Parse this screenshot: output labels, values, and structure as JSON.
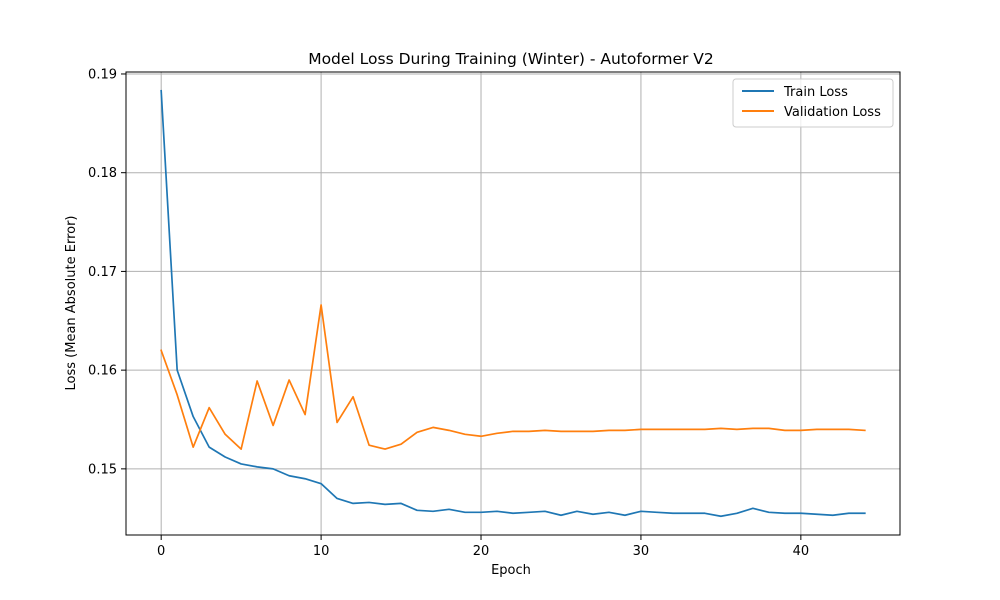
{
  "chart_data": {
    "type": "line",
    "title": "Model Loss During Training (Winter) - Autoformer V2",
    "xlabel": "Epoch",
    "ylabel": "Loss (Mean Absolute Error)",
    "xlim": [
      -2.2,
      46.2
    ],
    "ylim": [
      0.1433,
      0.1902
    ],
    "xticks": [
      0,
      10,
      20,
      30,
      40
    ],
    "yticks": [
      0.15,
      0.16,
      0.17,
      0.18,
      0.19
    ],
    "grid": true,
    "legend_position": "top-right",
    "x": [
      0,
      1,
      2,
      3,
      4,
      5,
      6,
      7,
      8,
      9,
      10,
      11,
      12,
      13,
      14,
      15,
      16,
      17,
      18,
      19,
      20,
      21,
      22,
      23,
      24,
      25,
      26,
      27,
      28,
      29,
      30,
      31,
      32,
      33,
      34,
      35,
      36,
      37,
      38,
      39,
      40,
      41,
      42,
      43,
      44
    ],
    "series": [
      {
        "name": "Train Loss",
        "color": "#1f77b4",
        "values": [
          0.1883,
          0.16,
          0.1553,
          0.1522,
          0.1512,
          0.1505,
          0.1502,
          0.15,
          0.1493,
          0.149,
          0.1485,
          0.147,
          0.1465,
          0.1466,
          0.1464,
          0.1465,
          0.1458,
          0.1457,
          0.1459,
          0.1456,
          0.1456,
          0.1457,
          0.1455,
          0.1456,
          0.1457,
          0.1453,
          0.1457,
          0.1454,
          0.1456,
          0.1453,
          0.1457,
          0.1456,
          0.1455,
          0.1455,
          0.1455,
          0.1452,
          0.1455,
          0.146,
          0.1456,
          0.1455,
          0.1455,
          0.1454,
          0.1453,
          0.1455,
          0.1455
        ]
      },
      {
        "name": "Validation Loss",
        "color": "#ff7f0e",
        "values": [
          0.162,
          0.1575,
          0.1522,
          0.1562,
          0.1535,
          0.152,
          0.1589,
          0.1544,
          0.159,
          0.1555,
          0.1666,
          0.1547,
          0.1573,
          0.1524,
          0.152,
          0.1525,
          0.1537,
          0.1542,
          0.1539,
          0.1535,
          0.1533,
          0.1536,
          0.1538,
          0.1538,
          0.1539,
          0.1538,
          0.1538,
          0.1538,
          0.1539,
          0.1539,
          0.154,
          0.154,
          0.154,
          0.154,
          0.154,
          0.1541,
          0.154,
          0.1541,
          0.1541,
          0.1539,
          0.1539,
          0.154,
          0.154,
          0.154,
          0.1539
        ]
      }
    ]
  }
}
